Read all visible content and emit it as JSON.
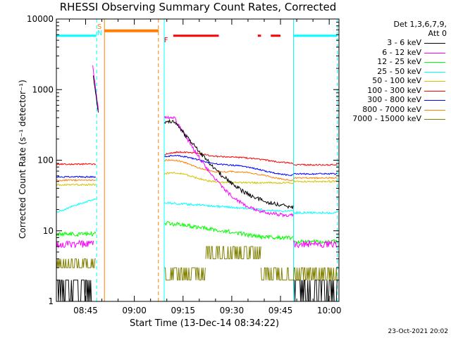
{
  "chart_data": {
    "type": "line",
    "title": "RHESSI Observing Summary Count Rates, Corrected",
    "xlabel": "Start Time (13-Dec-14 08:34:22)",
    "ylabel": "Corrected Count Rate (s⁻¹ detector⁻¹)",
    "y_scale": "log",
    "ylim": [
      1,
      10000
    ],
    "x_tick_labels": [
      "08:45",
      "09:00",
      "09:15",
      "09:30",
      "09:45",
      "10:00"
    ],
    "y_tick_labels": [
      "1",
      "10",
      "100",
      "1000",
      "10000"
    ],
    "legend_header": [
      "Det 1,3,6,7,9,",
      "Att 0"
    ],
    "legend_placement": "right",
    "date_stamp": "23-Oct-2021 20:02",
    "markers": {
      "s": "S",
      "n": "N",
      "f": "F"
    },
    "series": [
      {
        "name": "3 - 6 keV",
        "color": "#000000"
      },
      {
        "name": "6 - 12 keV",
        "color": "#ff00ff"
      },
      {
        "name": "12 - 25 keV",
        "color": "#00ff00"
      },
      {
        "name": "25 - 50 keV",
        "color": "#00ffff"
      },
      {
        "name": "50 - 100 keV",
        "color": "#d4c400"
      },
      {
        "name": "100 - 300 keV",
        "color": "#ff0000"
      },
      {
        "name": "300 - 800 keV",
        "color": "#0000ff"
      },
      {
        "name": "800 - 7000 keV",
        "color": "#ff8000"
      },
      {
        "name": "7000 - 15000 keV",
        "color": "#808000"
      }
    ]
  }
}
